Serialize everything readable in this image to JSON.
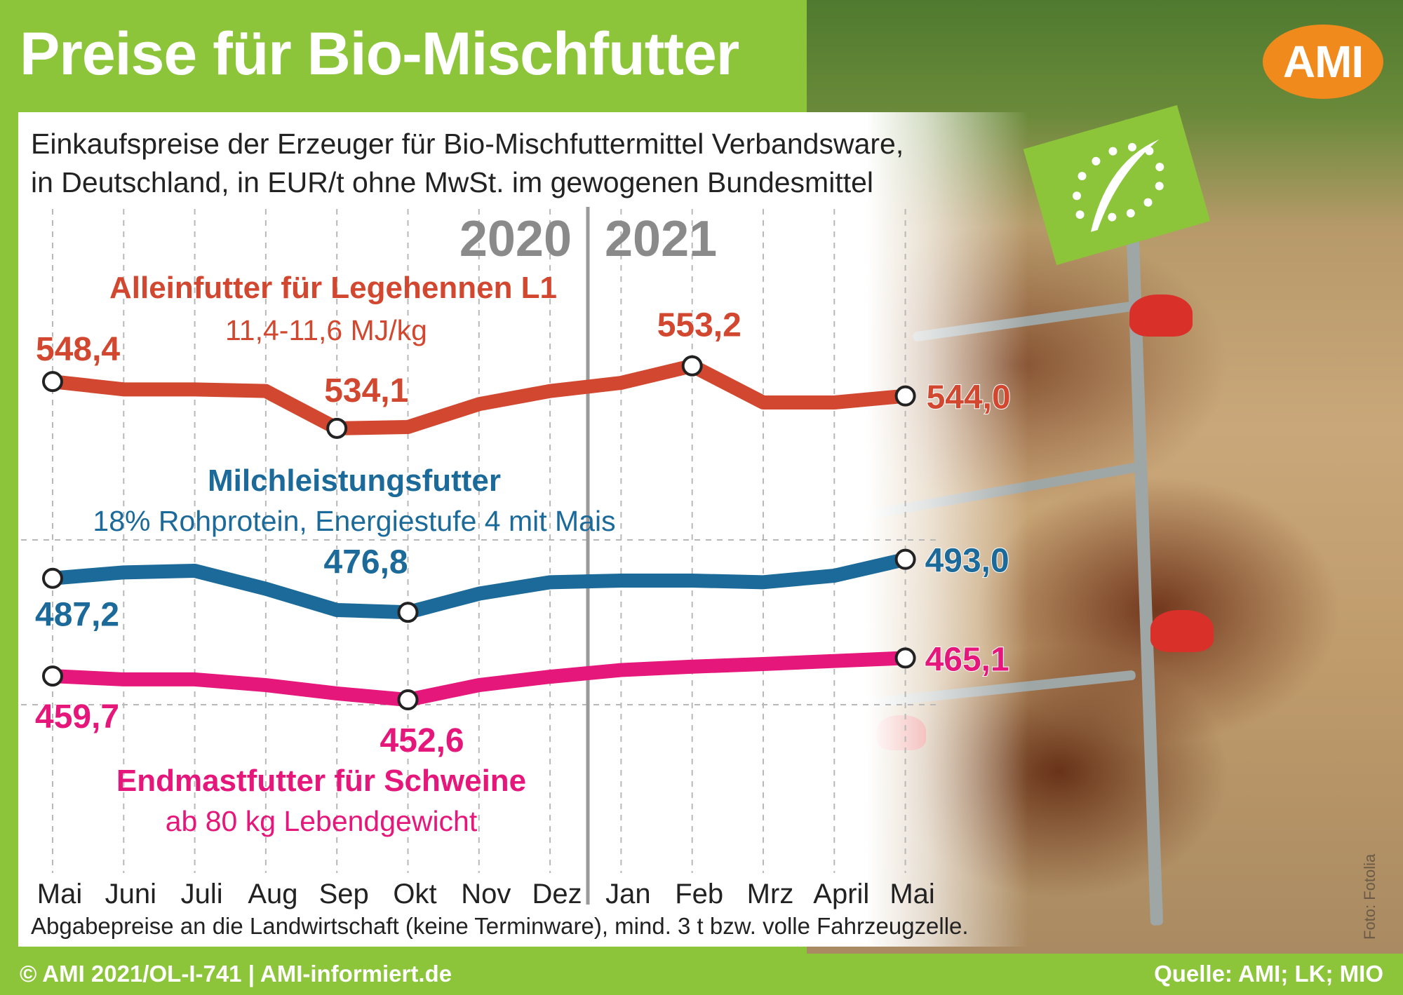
{
  "header": {
    "title": "Preise für Bio-Mischfutter",
    "logo_text": "AMI"
  },
  "subtitle": {
    "line1": "Einkaufspreise der Erzeuger für Bio-Mischfuttermittel Verbandsware,",
    "line2": "in Deutschland, in EUR/t ohne MwSt. im gewogenen Bundesmittel"
  },
  "footnote": "Abgabepreise an die Landwirtschaft (keine Terminware), mind. 3 t bzw. volle Fahrzeugzelle.",
  "footer": {
    "left": "© AMI 2021/OL-I-741 | AMI-informiert.de",
    "right": "Quelle: AMI; LK; MIO"
  },
  "photo_credit": "Foto: Fotolia",
  "colors": {
    "legehennen": "#d2472f",
    "milch": "#1b6a9a",
    "schweine": "#e5177b",
    "background_green": "#8cc43a",
    "logo_orange": "#f08a1c"
  },
  "chart_data": {
    "type": "line",
    "title": "Preise für Bio-Mischfutter",
    "ylabel": "EUR/t",
    "years": [
      "2020",
      "2021"
    ],
    "categories": [
      "Mai",
      "Juni",
      "Juli",
      "Aug",
      "Sep",
      "Okt",
      "Nov",
      "Dez",
      "Jan",
      "Feb",
      "Mrz",
      "April",
      "Mai"
    ],
    "grid": true,
    "series": [
      {
        "name": "Alleinfutter für Legehennen L1",
        "subtitle": "11,4-11,6 MJ/kg",
        "color": "#d2472f",
        "values": [
          548.4,
          546.0,
          546.0,
          545.5,
          534.1,
          534.5,
          541.5,
          545.5,
          548.0,
          553.2,
          542.0,
          542.0,
          544.0
        ],
        "labels": [
          {
            "index": 0,
            "text": "548,4"
          },
          {
            "index": 4,
            "text": "534,1"
          },
          {
            "index": 9,
            "text": "553,2"
          },
          {
            "index": 12,
            "text": "544,0"
          }
        ]
      },
      {
        "name": "Milchleistungsfutter",
        "subtitle": "18% Rohprotein, Energiestufe 4 mit Mais",
        "color": "#1b6a9a",
        "values": [
          487.2,
          489.0,
          489.5,
          484.0,
          477.5,
          476.8,
          482.5,
          486.0,
          486.5,
          486.5,
          486.0,
          488.0,
          493.0
        ],
        "labels": [
          {
            "index": 0,
            "text": "487,2"
          },
          {
            "index": 5,
            "text": "476,8"
          },
          {
            "index": 12,
            "text": "493,0"
          }
        ]
      },
      {
        "name": "Endmastfutter für Schweine",
        "subtitle": "ab 80 kg Lebendgewicht",
        "color": "#e5177b",
        "values": [
          459.7,
          458.7,
          458.7,
          457.0,
          454.5,
          452.6,
          457.0,
          459.5,
          461.5,
          462.5,
          463.3,
          464.2,
          465.1
        ],
        "labels": [
          {
            "index": 0,
            "text": "459,7"
          },
          {
            "index": 5,
            "text": "452,6"
          },
          {
            "index": 12,
            "text": "465,1"
          }
        ]
      }
    ]
  }
}
